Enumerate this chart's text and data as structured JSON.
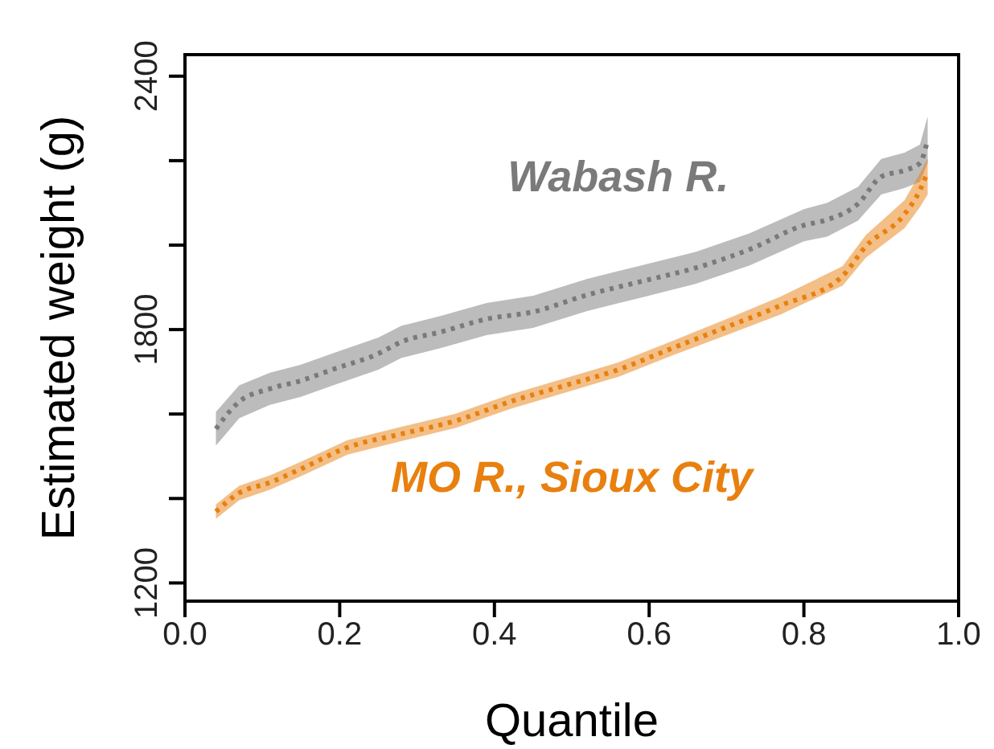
{
  "chart_data": {
    "type": "line",
    "xlabel": "Quantile",
    "ylabel": "Estimated weight (g)",
    "xlim": [
      0,
      1
    ],
    "ylim": [
      1157,
      2451
    ],
    "xticks": [
      {
        "value": 0,
        "label": "0.0"
      },
      {
        "value": 0.2,
        "label": "0.2"
      },
      {
        "value": 0.4,
        "label": "0.4"
      },
      {
        "value": 0.6,
        "label": "0.6"
      },
      {
        "value": 0.8,
        "label": "0.8"
      },
      {
        "value": 1,
        "label": "1.0"
      }
    ],
    "yticks": [
      1200,
      {
        "value": 1400,
        "label": null
      },
      {
        "value": 1600,
        "label": null
      },
      1800,
      {
        "value": 2000,
        "label": null
      },
      {
        "value": 2200,
        "label": null
      },
      2400
    ],
    "grid": false,
    "line_style": "dotted",
    "marker": "none",
    "series": [
      {
        "name": "Wabash R.",
        "color": "#7a7a7a",
        "x": [
          0.04,
          0.07,
          0.11,
          0.15,
          0.19,
          0.25,
          0.28,
          0.33,
          0.39,
          0.45,
          0.52,
          0.59,
          0.66,
          0.73,
          0.8,
          0.83,
          0.87,
          0.9,
          0.93,
          0.95,
          0.96
        ],
        "values": [
          1565,
          1629,
          1660,
          1679,
          1705,
          1743,
          1771,
          1794,
          1825,
          1842,
          1882,
          1914,
          1946,
          1990,
          2047,
          2060,
          2098,
          2162,
          2177,
          2194,
          2250
        ],
        "lower": [
          1525,
          1590,
          1622,
          1641,
          1667,
          1705,
          1733,
          1756,
          1787,
          1804,
          1844,
          1876,
          1908,
          1952,
          2009,
          2020,
          2058,
          2120,
          2135,
          2150,
          2195
        ],
        "upper": [
          1605,
          1668,
          1698,
          1717,
          1743,
          1781,
          1809,
          1832,
          1863,
          1880,
          1920,
          1952,
          1984,
          2028,
          2085,
          2100,
          2138,
          2204,
          2219,
          2238,
          2305
        ]
      },
      {
        "name": "MO R., Sioux City",
        "color": "#e8800f",
        "x": [
          0.04,
          0.07,
          0.11,
          0.15,
          0.21,
          0.28,
          0.35,
          0.42,
          0.49,
          0.56,
          0.63,
          0.7,
          0.77,
          0.85,
          0.88,
          0.93,
          0.95,
          0.96
        ],
        "values": [
          1369,
          1413,
          1438,
          1470,
          1521,
          1553,
          1584,
          1629,
          1667,
          1705,
          1756,
          1806,
          1857,
          1927,
          1997,
          2073,
          2130,
          2174
        ],
        "lower": [
          1352,
          1396,
          1421,
          1453,
          1504,
          1536,
          1567,
          1612,
          1650,
          1688,
          1739,
          1787,
          1836,
          1904,
          1970,
          2040,
          2090,
          2120
        ],
        "upper": [
          1386,
          1430,
          1455,
          1487,
          1538,
          1570,
          1601,
          1646,
          1684,
          1722,
          1773,
          1825,
          1878,
          1950,
          2024,
          2106,
          2170,
          2205
        ]
      }
    ]
  }
}
